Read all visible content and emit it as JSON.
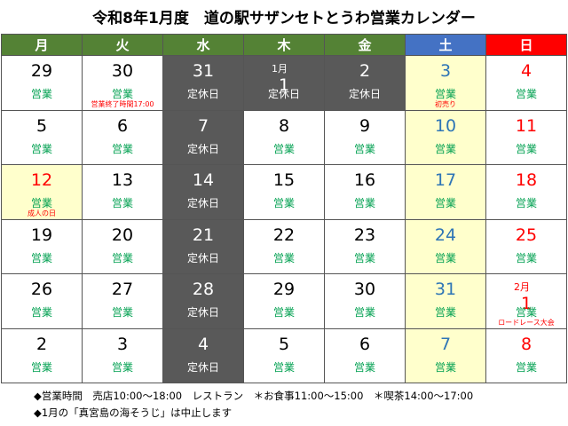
{
  "title": "令和8年1月度　道の駅サザンセトとうわ営業カレンダー",
  "weekdays": [
    {
      "label": "月",
      "header_color": "#548235",
      "fill": "#ffffff",
      "color": "#000000",
      "status_color": "#00a050"
    },
    {
      "label": "火",
      "header_color": "#548235",
      "fill": "#ffffff",
      "color": "#000000",
      "status_color": "#00a050"
    },
    {
      "label": "水",
      "header_color": "#548235",
      "fill": "#595959",
      "color": "#ffffff",
      "status_color": "#ffffff"
    },
    {
      "label": "木",
      "header_color": "#548235",
      "fill": "#ffffff",
      "color": "#000000",
      "status_color": "#00a050"
    },
    {
      "label": "金",
      "header_color": "#548235",
      "fill": "#ffffff",
      "color": "#000000",
      "status_color": "#00a050"
    },
    {
      "label": "土",
      "header_color": "#4472c4",
      "fill": "#ffffcc",
      "color": "#2e75b6",
      "status_color": "#00a050"
    },
    {
      "label": "日",
      "header_color": "#ff0000",
      "fill": "#ffffff",
      "color": "#ff0000",
      "status_color": "#00a050"
    }
  ],
  "weeks": [
    [
      {
        "day": 29,
        "status": "営業"
      },
      {
        "day": 30,
        "status": "営業",
        "note": "営業終了時間17:00"
      },
      {
        "day": 31,
        "status": "定休日"
      },
      {
        "month": "1月",
        "day": 1,
        "status": "定休日",
        "fill": "#595959",
        "color": "#ffffff",
        "status_color": "#ffffff"
      },
      {
        "day": 2,
        "status": "定休日",
        "fill": "#595959",
        "color": "#ffffff",
        "status_color": "#ffffff"
      },
      {
        "day": 3,
        "status": "営業",
        "note": "初売り"
      },
      {
        "day": 4,
        "status": "営業"
      }
    ],
    [
      {
        "day": 5,
        "status": "営業"
      },
      {
        "day": 6,
        "status": "営業"
      },
      {
        "day": 7,
        "status": "定休日"
      },
      {
        "day": 8,
        "status": "営業"
      },
      {
        "day": 9,
        "status": "営業"
      },
      {
        "day": 10,
        "status": "営業"
      },
      {
        "day": 11,
        "status": "営業"
      }
    ],
    [
      {
        "day": 12,
        "status": "営業",
        "note": "成人の日",
        "fill": "#ffffcc",
        "color": "#ff0000"
      },
      {
        "day": 13,
        "status": "営業"
      },
      {
        "day": 14,
        "status": "定休日"
      },
      {
        "day": 15,
        "status": "営業"
      },
      {
        "day": 16,
        "status": "営業"
      },
      {
        "day": 17,
        "status": "営業"
      },
      {
        "day": 18,
        "status": "営業"
      }
    ],
    [
      {
        "day": 19,
        "status": "営業"
      },
      {
        "day": 20,
        "status": "営業"
      },
      {
        "day": 21,
        "status": "定休日"
      },
      {
        "day": 22,
        "status": "営業"
      },
      {
        "day": 23,
        "status": "営業"
      },
      {
        "day": 24,
        "status": "営業"
      },
      {
        "day": 25,
        "status": "営業"
      }
    ],
    [
      {
        "day": 26,
        "status": "営業"
      },
      {
        "day": 27,
        "status": "営業"
      },
      {
        "day": 28,
        "status": "定休日"
      },
      {
        "day": 29,
        "status": "営業"
      },
      {
        "day": 30,
        "status": "営業"
      },
      {
        "day": 31,
        "status": "営業"
      },
      {
        "month": "2月",
        "day": 1,
        "status": "営業",
        "note": "ロードレース大会"
      }
    ],
    [
      {
        "day": 2,
        "status": "営業"
      },
      {
        "day": 3,
        "status": "営業"
      },
      {
        "day": 4,
        "status": "定休日"
      },
      {
        "day": 5,
        "status": "営業"
      },
      {
        "day": 6,
        "status": "営業"
      },
      {
        "day": 7,
        "status": "営業"
      },
      {
        "day": 8,
        "status": "営業"
      }
    ]
  ],
  "footer": [
    "◆営業時間　売店10:00～18:00　レストラン　＊お食事11:00～15:00　＊喫茶14:00～17:00",
    "◆1月の「真宮島の海そうじ」は中止します"
  ]
}
